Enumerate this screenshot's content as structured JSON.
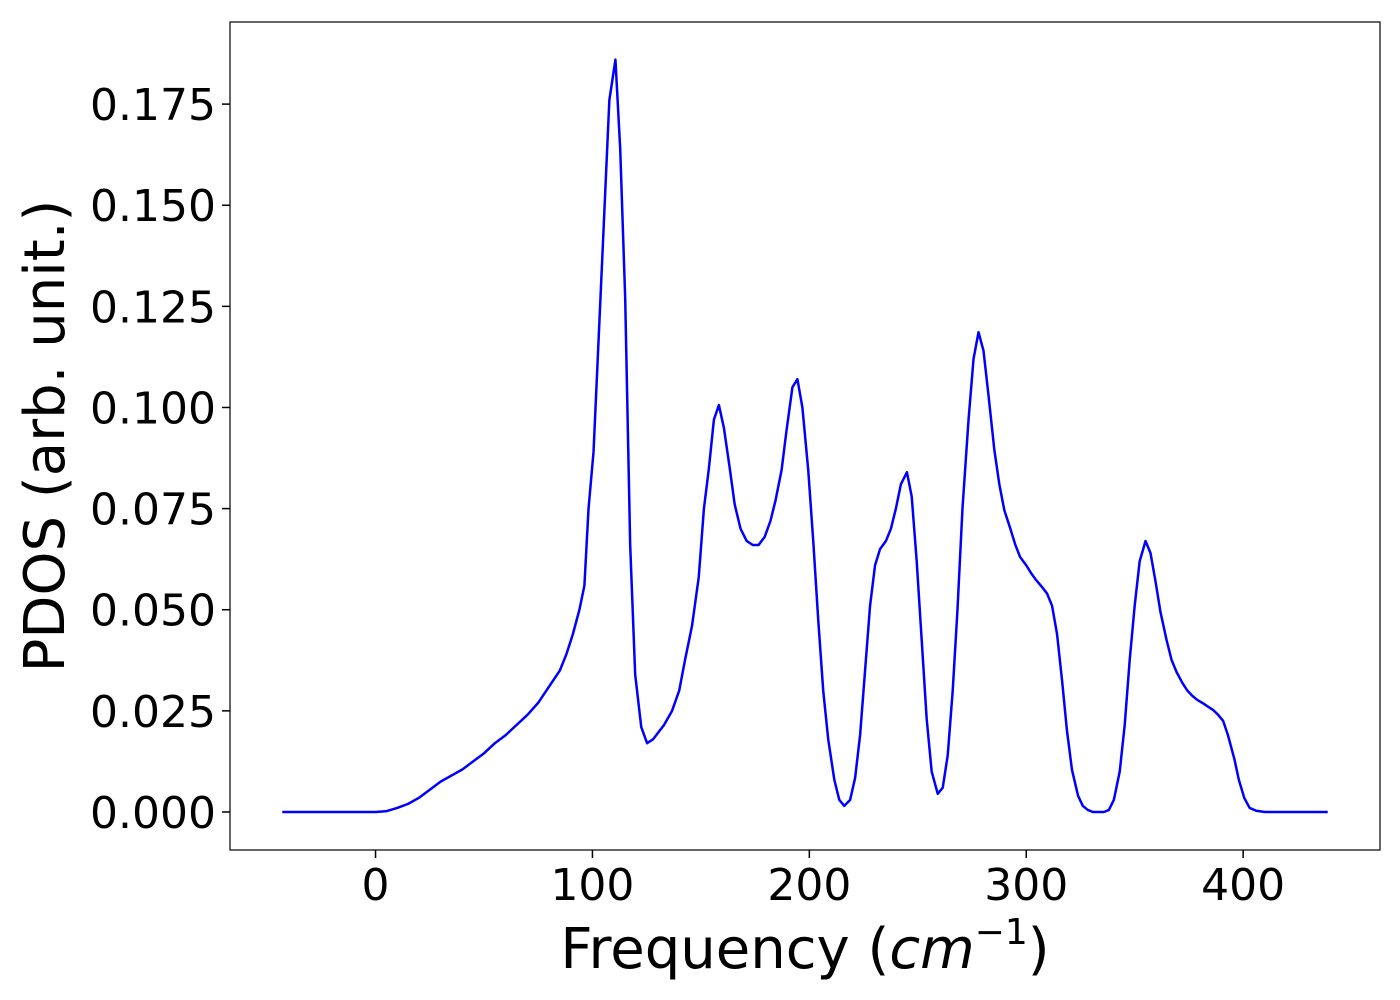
{
  "chart_data": {
    "type": "line",
    "xlabel": [
      "Frequency (",
      "cm",
      "−1",
      ")"
    ],
    "ylabel": "PDOS (arb. unit.)",
    "xlim": [
      -67.1,
      463.1
    ],
    "ylim": [
      -0.0094,
      0.1953
    ],
    "xticks": [
      0,
      100,
      200,
      300,
      400
    ],
    "yticks": [
      {
        "value": 0,
        "label": "0.000"
      },
      0.025,
      {
        "value": 0.05,
        "label": "0.050"
      },
      0.075,
      {
        "value": 0.1,
        "label": "0.100"
      },
      0.125,
      {
        "value": 0.15,
        "label": "0.150"
      },
      0.175
    ],
    "grid": false,
    "series": [
      {
        "color": "#0000ff",
        "x": [
          -43,
          0,
          5,
          10,
          15,
          20,
          25,
          30,
          35,
          40,
          45,
          50,
          55,
          60,
          65,
          70,
          75,
          80,
          85,
          88,
          91,
          94,
          96.3,
          98.2,
          100.5,
          103.7,
          107.8,
          110.6,
          112.8,
          115.1,
          117.4,
          119.7,
          122.5,
          125.2,
          128,
          133,
          136.7,
          140,
          142.7,
          145.9,
          149,
          151.4,
          153.7,
          156,
          158.3,
          160.6,
          163.3,
          165.6,
          168.3,
          171.1,
          173.9,
          176.6,
          179.4,
          182.1,
          184.4,
          187.2,
          189.4,
          192.2,
          194.5,
          196.8,
          199.5,
          201.8,
          204.1,
          206.4,
          208.7,
          211.5,
          213.8,
          216.1,
          218.8,
          221.1,
          223.4,
          225.7,
          228,
          230.3,
          232.6,
          235.3,
          237.6,
          239.9,
          242.2,
          245,
          247.2,
          249.5,
          251.8,
          254.1,
          256.4,
          259.2,
          261.5,
          263.8,
          266.1,
          268.3,
          270.6,
          273.4,
          275.7,
          278,
          280.3,
          282.6,
          285.3,
          287.6,
          289.9,
          292.7,
          295,
          297.2,
          300,
          302.3,
          304.6,
          307.3,
          309.6,
          311.9,
          314.2,
          316.5,
          318.8,
          321.1,
          323.9,
          326.1,
          328.4,
          330.7,
          333.5,
          335.8,
          338.1,
          340.4,
          343.1,
          345.4,
          347.7,
          350,
          352.3,
          355,
          357.3,
          359.6,
          361.9,
          364.7,
          367,
          369.3,
          372,
          374.3,
          376.6,
          378.9,
          381.7,
          383.9,
          386.2,
          388.5,
          390.8,
          393,
          396,
          398,
          400.5,
          403,
          406,
          410,
          439
        ],
        "values": [
          0,
          0,
          0.0002,
          0.001,
          0.002,
          0.0035,
          0.0055,
          0.0075,
          0.009,
          0.0105,
          0.0125,
          0.0145,
          0.017,
          0.019,
          0.0215,
          0.024,
          0.027,
          0.031,
          0.035,
          0.039,
          0.044,
          0.05,
          0.056,
          0.075,
          0.089,
          0.127,
          0.176,
          0.186,
          0.164,
          0.127,
          0.066,
          0.034,
          0.021,
          0.017,
          0.018,
          0.0215,
          0.025,
          0.03,
          0.0376,
          0.046,
          0.058,
          0.075,
          0.085,
          0.097,
          0.1006,
          0.095,
          0.085,
          0.076,
          0.07,
          0.067,
          0.066,
          0.066,
          0.068,
          0.072,
          0.077,
          0.0845,
          0.094,
          0.105,
          0.107,
          0.1,
          0.0845,
          0.067,
          0.0475,
          0.03,
          0.018,
          0.008,
          0.003,
          0.0015,
          0.003,
          0.0084,
          0.019,
          0.035,
          0.051,
          0.061,
          0.065,
          0.067,
          0.07,
          0.075,
          0.081,
          0.084,
          0.078,
          0.062,
          0.0425,
          0.023,
          0.01,
          0.0045,
          0.006,
          0.014,
          0.03,
          0.05,
          0.075,
          0.097,
          0.112,
          0.1186,
          0.114,
          0.103,
          0.0895,
          0.081,
          0.0746,
          0.07,
          0.066,
          0.063,
          0.061,
          0.059,
          0.0573,
          0.0556,
          0.054,
          0.051,
          0.044,
          0.0326,
          0.02,
          0.0104,
          0.004,
          0.0015,
          0.0005,
          0,
          0,
          0,
          0.0005,
          0.003,
          0.01,
          0.0215,
          0.0376,
          0.051,
          0.062,
          0.067,
          0.064,
          0.057,
          0.0494,
          0.0425,
          0.0376,
          0.0346,
          0.0319,
          0.03,
          0.0287,
          0.0277,
          0.0268,
          0.026,
          0.0252,
          0.024,
          0.0225,
          0.019,
          0.013,
          0.008,
          0.0035,
          0.001,
          0.0003,
          0,
          0
        ]
      }
    ]
  }
}
